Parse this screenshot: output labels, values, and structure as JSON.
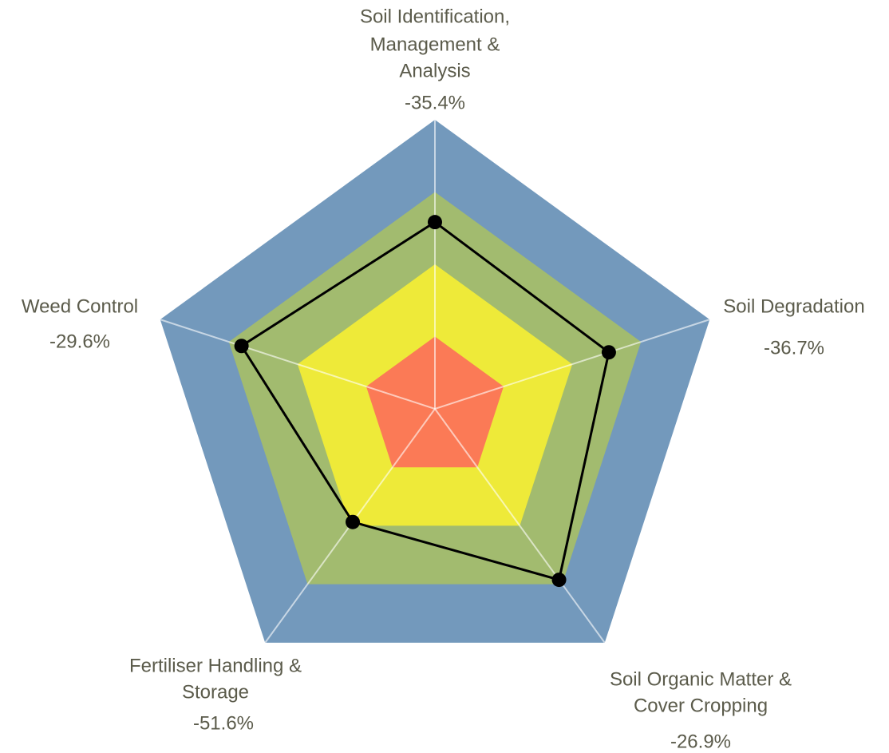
{
  "chart_data": {
    "type": "radar",
    "categories": [
      [
        "Soil Identification,",
        "Management &",
        "Analysis"
      ],
      [
        "Soil Degradation"
      ],
      [
        "Soil Organic Matter &",
        "Cover Cropping"
      ],
      [
        "Fertiliser Handling &",
        "Storage"
      ],
      [
        "Weed Control"
      ]
    ],
    "annotations": [
      "-35.4%",
      "-36.7%",
      "-26.9%",
      "-51.6%",
      "-29.6%"
    ],
    "values": [
      64.6,
      63.3,
      73.1,
      48.4,
      70.4
    ],
    "color": "#000000",
    "ylim": [
      0,
      100
    ],
    "yticks": [
      25,
      50,
      75,
      100
    ],
    "band_colors": [
      "#fb7a56",
      "#eeea39",
      "#a2bb6f",
      "#7399bc"
    ],
    "grid": true
  }
}
